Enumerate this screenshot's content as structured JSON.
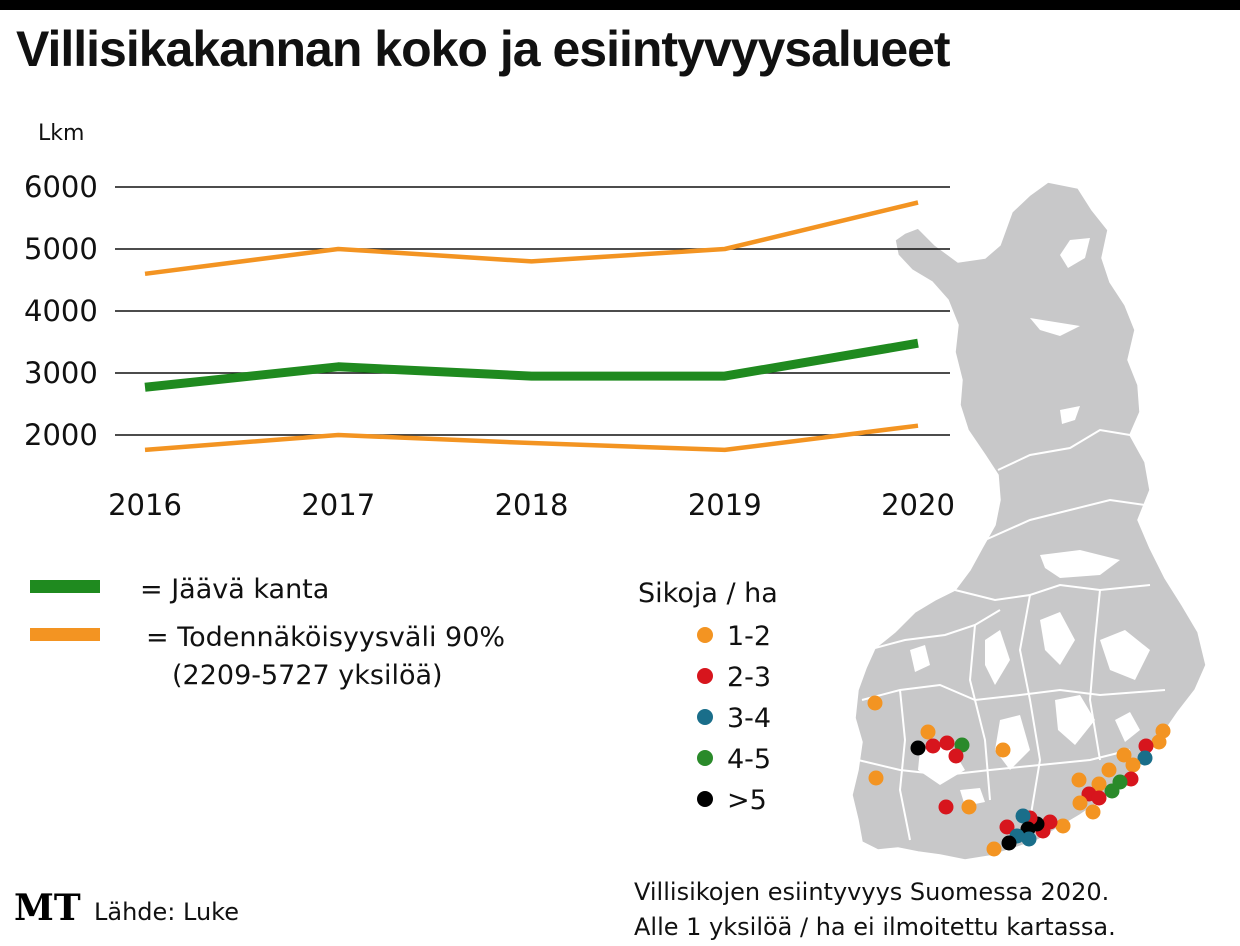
{
  "title": "Villisikakannan koko ja esiintyvyysalueet",
  "chart_data": {
    "type": "line",
    "ylabel": "Lkm",
    "x": [
      "2016",
      "2017",
      "2018",
      "2019",
      "2020"
    ],
    "yticks": [
      "6000",
      "5000",
      "4000",
      "3000",
      "2000"
    ],
    "ylim": [
      1600,
      6200
    ],
    "grid": true,
    "series": [
      {
        "name": "Todennäköisyysväli 90%",
        "role": "upper",
        "color": "#f39422",
        "values": [
          4600,
          5000,
          4800,
          5000,
          5750
        ]
      },
      {
        "name": "Jäävä kanta",
        "role": "main",
        "color": "#1f8a1f",
        "values": [
          2770,
          3100,
          2950,
          2950,
          3480
        ]
      },
      {
        "name": "Todennäköisyysväli 90%",
        "role": "lower",
        "color": "#f39422",
        "values": [
          1760,
          2000,
          1870,
          1760,
          2150
        ]
      }
    ]
  },
  "legend": {
    "items": [
      {
        "text": "= Jäävä kanta",
        "color": "#1f8a1f"
      },
      {
        "text": "= Todennäköisyysväli 90%",
        "subtext": "(2209-5727 yksilöä)",
        "color": "#f39422"
      }
    ]
  },
  "map": {
    "legend_title": "Sikoja / ha",
    "categories": [
      {
        "label": "1-2",
        "color": "#f39422"
      },
      {
        "label": "2-3",
        "color": "#d7151d"
      },
      {
        "label": "3-4",
        "color": "#1a6e8a"
      },
      {
        "label": "4-5",
        "color": "#2a8a2a"
      },
      {
        "label": ">5",
        "color": "#000000"
      }
    ],
    "land_color": "#c8c8c9",
    "caption_line1": "Villisikojen esiintyvyys Suomessa 2020.",
    "caption_line2": "Alle 1 yksilöä / ha ei ilmoitettu kartassa."
  },
  "footer": {
    "brand": "MT",
    "source": "Lähde: Luke"
  }
}
